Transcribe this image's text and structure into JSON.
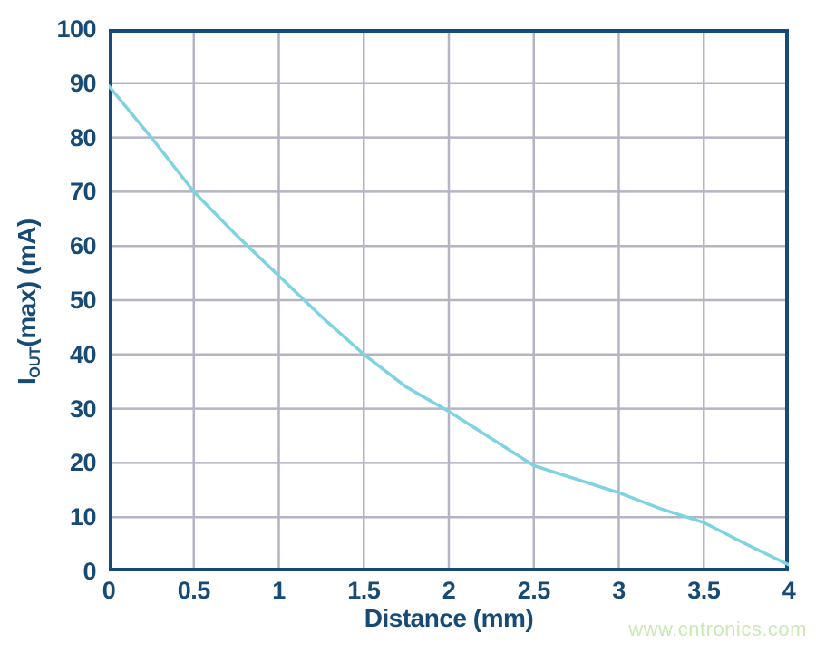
{
  "watermark": "www.cntronics.com",
  "chart_data": {
    "type": "line",
    "title": "",
    "xlabel": "Distance (mm)",
    "ylabel": "IOUT(max) (mA)",
    "ylabel_parts": {
      "base": "I",
      "sub": "OUT",
      "rest": "(max) (mA)"
    },
    "xlim": [
      0,
      4
    ],
    "ylim": [
      0,
      100
    ],
    "x_ticks": [
      "0",
      "0.5",
      "1",
      "1.5",
      "2",
      "2.5",
      "3",
      "3.5",
      "4"
    ],
    "y_ticks": [
      "0",
      "10",
      "20",
      "30",
      "40",
      "50",
      "60",
      "70",
      "80",
      "90",
      "100"
    ],
    "grid": true,
    "legend": "none",
    "series": [
      {
        "name": "IOUT(max)",
        "x": [
          0,
          0.25,
          0.5,
          0.75,
          1.0,
          1.25,
          1.5,
          1.75,
          2.0,
          2.25,
          2.5,
          2.75,
          3.0,
          3.25,
          3.5,
          3.75,
          4.0
        ],
        "y": [
          89.5,
          80,
          70,
          62,
          54.5,
          47,
          40,
          34,
          29.5,
          24.5,
          19.5,
          17,
          14.5,
          11.5,
          9,
          5,
          1.2
        ]
      }
    ],
    "colors": {
      "axis": "#174a75",
      "grid": "#b4b4c4",
      "curve": "#7ed3e2",
      "watermark": "#cbe8b5",
      "background": "#ffffff"
    }
  }
}
